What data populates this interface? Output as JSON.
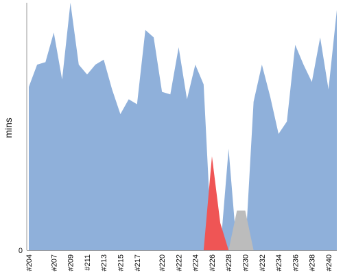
{
  "chart_data": {
    "type": "area",
    "ylabel": "mins",
    "xlabel": "",
    "title": "",
    "grid": false,
    "legend": "none",
    "ylim": [
      0,
      100
    ],
    "y_tick_labels": [
      "0"
    ],
    "x": [
      "#204",
      "#205",
      "#206",
      "#207",
      "#208",
      "#209",
      "#210",
      "#211",
      "#212",
      "#213",
      "#214",
      "#215",
      "#216",
      "#217",
      "#218",
      "#219",
      "#220",
      "#221",
      "#222",
      "#223",
      "#224",
      "#225",
      "#226",
      "#227",
      "#228",
      "#229",
      "#230",
      "#231",
      "#232",
      "#233",
      "#234",
      "#235",
      "#236",
      "#237",
      "#238",
      "#239",
      "#240",
      "#241"
    ],
    "x_tick_labels": [
      "#204",
      "#207",
      "#209",
      "#211",
      "#213",
      "#215",
      "#217",
      "#220",
      "#222",
      "#224",
      "#226",
      "#228",
      "#230",
      "#232",
      "#234",
      "#236",
      "#238",
      "#240"
    ],
    "series": [
      {
        "status": "success",
        "color": "#8fb0da",
        "values": [
          66,
          75,
          76,
          88,
          69,
          100,
          75,
          71,
          75,
          77,
          65,
          55,
          61,
          59,
          89,
          86,
          64,
          63,
          82,
          61,
          75,
          67,
          0,
          0,
          41,
          0,
          0,
          60,
          75,
          62,
          47,
          52,
          83,
          75,
          68,
          86,
          65,
          97
        ]
      },
      {
        "status": "failure",
        "color": "#ef5555",
        "values": [
          0,
          0,
          0,
          0,
          0,
          0,
          0,
          0,
          0,
          0,
          0,
          0,
          0,
          0,
          0,
          0,
          0,
          0,
          0,
          0,
          0,
          0,
          38,
          11,
          0,
          0,
          0,
          0,
          0,
          0,
          0,
          0,
          0,
          0,
          0,
          0,
          0,
          0
        ]
      },
      {
        "status": "aborted",
        "color": "#bcbcbc",
        "values": [
          0,
          0,
          0,
          0,
          0,
          0,
          0,
          0,
          0,
          0,
          0,
          0,
          0,
          0,
          0,
          0,
          0,
          0,
          0,
          0,
          0,
          0,
          0,
          0,
          0,
          16,
          16,
          0,
          0,
          0,
          0,
          0,
          0,
          0,
          0,
          0,
          0,
          0
        ]
      }
    ]
  }
}
